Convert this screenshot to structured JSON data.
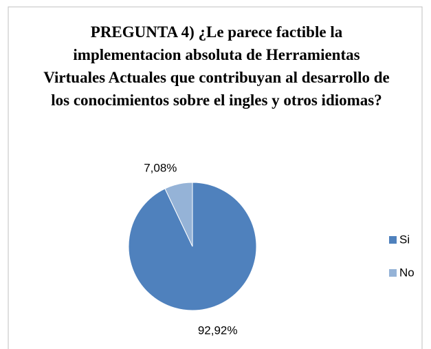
{
  "chart_data": {
    "type": "pie",
    "title": "PREGUNTA 4) ¿Le parece factible la implementacion absoluta de Herramientas Virtuales Actuales que contribuyan al desarrollo de los conocimientos sobre el ingles y otros idiomas?",
    "categories": [
      "Si",
      "No"
    ],
    "values": [
      92.92,
      7.08
    ],
    "value_labels": [
      "92,92%",
      "7,08%"
    ],
    "colors": [
      "#4f81bd",
      "#95b3d7"
    ],
    "legend": "right"
  }
}
